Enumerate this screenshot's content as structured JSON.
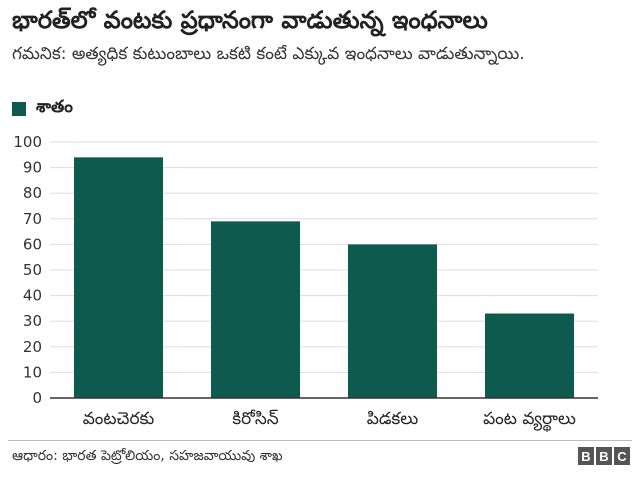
{
  "title": "భారత్‌లో వంటకు ప్రధానంగా వాడుతున్న ఇంధనాలు",
  "subtitle": "గమనిక: అత్యధిక కుటుంబాలు ఒకటి కంటే ఎక్కువ ఇంధనాలు వాడుతున్నాయి.",
  "source": "ఆధారం: భారత పెట్రోలియం, సహజవాయువు శాఖ",
  "brand": [
    "B",
    "B",
    "C"
  ],
  "colors": {
    "bar": "#0f5a4f",
    "grid": "#dddddd",
    "axis": "#333333"
  },
  "chart_data": {
    "type": "bar",
    "categories": [
      "వంటచెరకు",
      "కిరోసిన్",
      "పిడకలు",
      "పంట వ్యర్థాలు"
    ],
    "series": [
      {
        "name": "శాతం",
        "values": [
          94,
          69,
          60,
          33
        ]
      }
    ],
    "ylim": [
      0,
      100
    ],
    "yticks": [
      0,
      10,
      20,
      30,
      40,
      50,
      60,
      70,
      80,
      90,
      100
    ],
    "grid": true,
    "legend": "top-left"
  }
}
